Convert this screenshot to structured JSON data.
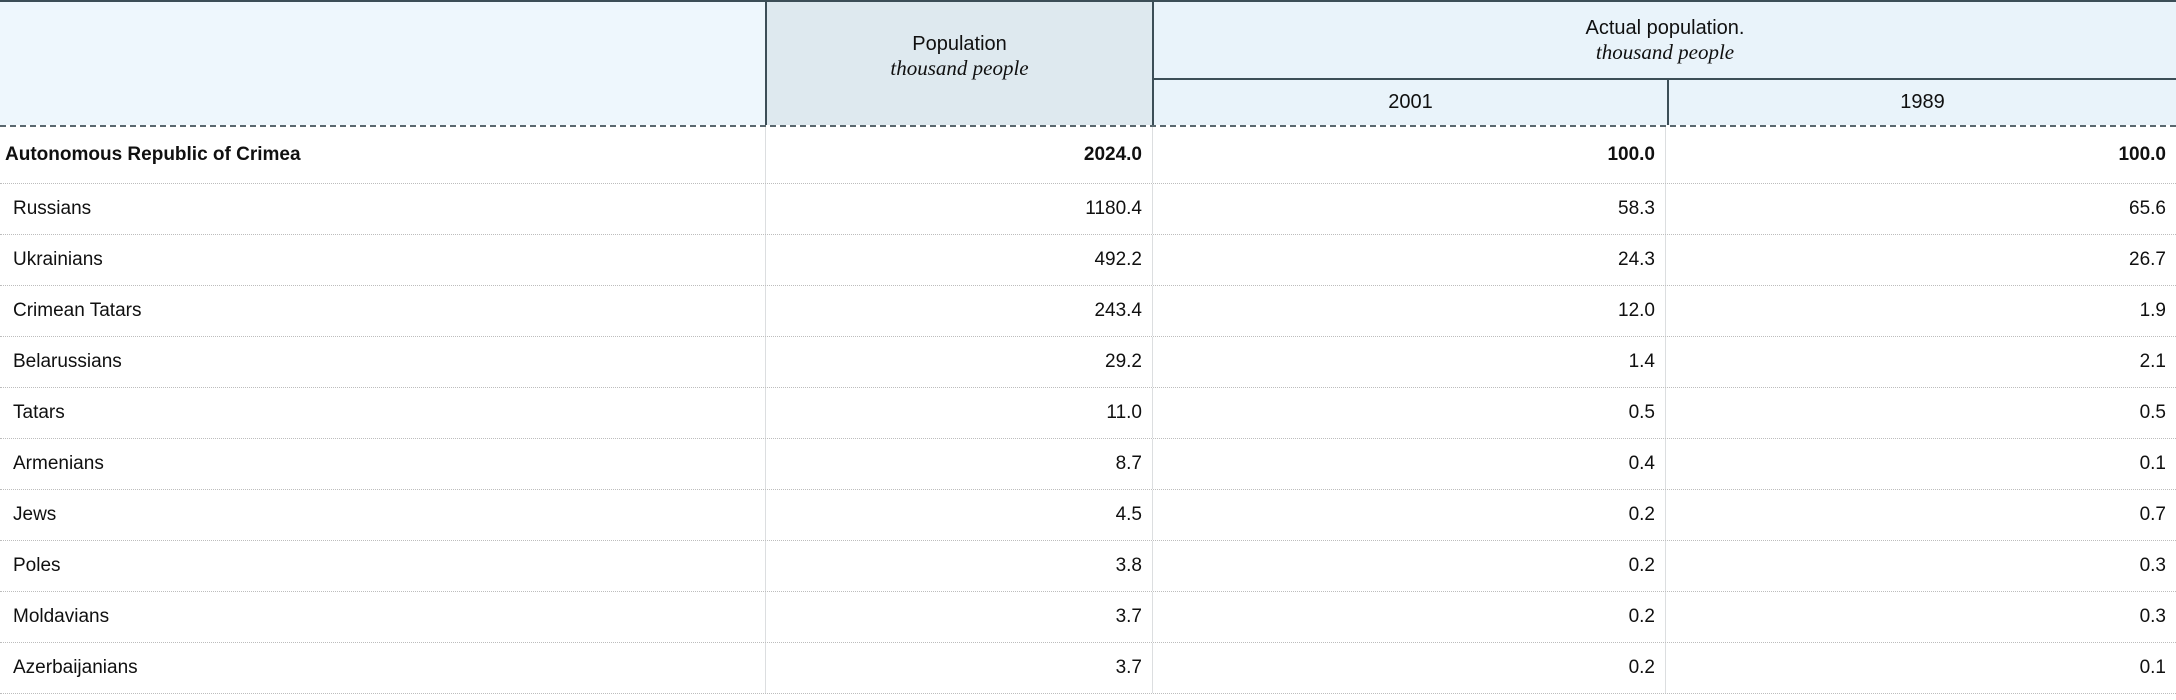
{
  "table": {
    "header": {
      "population_label": "Population",
      "population_sublabel": "thousand people",
      "actual_label": "Actual population.",
      "actual_sublabel": "thousand people",
      "year_columns": [
        "2001",
        "1989"
      ]
    },
    "rows": [
      {
        "name": "Autonomous Republic of Crimea",
        "population": "2024.0",
        "y2001": "100.0",
        "y1989": "100.0",
        "bold": true
      },
      {
        "name": "Russians",
        "population": "1180.4",
        "y2001": "58.3",
        "y1989": "65.6",
        "bold": false
      },
      {
        "name": "Ukrainians",
        "population": "492.2",
        "y2001": "24.3",
        "y1989": "26.7",
        "bold": false
      },
      {
        "name": "Crimean Tatars",
        "population": "243.4",
        "y2001": "12.0",
        "y1989": "1.9",
        "bold": false
      },
      {
        "name": "Belarussians",
        "population": "29.2",
        "y2001": "1.4",
        "y1989": "2.1",
        "bold": false
      },
      {
        "name": "Tatars",
        "population": "11.0",
        "y2001": "0.5",
        "y1989": "0.5",
        "bold": false
      },
      {
        "name": "Armenians",
        "population": "8.7",
        "y2001": "0.4",
        "y1989": "0.1",
        "bold": false
      },
      {
        "name": "Jews",
        "population": "4.5",
        "y2001": "0.2",
        "y1989": "0.7",
        "bold": false
      },
      {
        "name": "Poles",
        "population": "3.8",
        "y2001": "0.2",
        "y1989": "0.3",
        "bold": false
      },
      {
        "name": "Moldavians",
        "population": "3.7",
        "y2001": "0.2",
        "y1989": "0.3",
        "bold": false
      },
      {
        "name": "Azerbaijanians",
        "population": "3.7",
        "y2001": "0.2",
        "y1989": "0.1",
        "bold": false
      }
    ],
    "colors": {
      "left_header_bg": "#eef7fd",
      "population_header_bg": "#dee9ef",
      "actual_header_bg": "#e9f3fa",
      "dark_border": "#3c4e57",
      "dotted_row_border": "#bdbdbd",
      "faint_column_border": "#dcdee0",
      "text": "#101010"
    }
  },
  "chart_data": {
    "type": "table",
    "title": "",
    "columns": [
      "",
      "Population (thousand people)",
      "Actual population 2001 (%)",
      "Actual population 1989 (%)"
    ],
    "categories": [
      "Autonomous Republic of Crimea",
      "Russians",
      "Ukrainians",
      "Crimean Tatars",
      "Belarussians",
      "Tatars",
      "Armenians",
      "Jews",
      "Poles",
      "Moldavians",
      "Azerbaijanians"
    ],
    "series": [
      {
        "name": "Population thousand people",
        "values": [
          2024.0,
          1180.4,
          492.2,
          243.4,
          29.2,
          11.0,
          8.7,
          4.5,
          3.8,
          3.7,
          3.7
        ]
      },
      {
        "name": "2001",
        "values": [
          100.0,
          58.3,
          24.3,
          12.0,
          1.4,
          0.5,
          0.4,
          0.2,
          0.2,
          0.2,
          0.2
        ]
      },
      {
        "name": "1989",
        "values": [
          100.0,
          65.6,
          26.7,
          1.9,
          2.1,
          0.5,
          0.1,
          0.7,
          0.3,
          0.3,
          0.1
        ]
      }
    ]
  }
}
